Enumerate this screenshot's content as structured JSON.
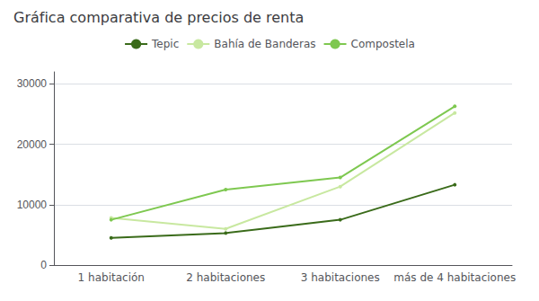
{
  "chart_data": {
    "type": "line",
    "title": "Gráfica comparativa de precios de renta",
    "categories": [
      "1 habitación",
      "2 habitaciones",
      "3 habitaciones",
      "más de 4 habitaciones"
    ],
    "series": [
      {
        "name": "Tepic",
        "color": "#3a6b1a",
        "values": [
          4500,
          5300,
          7500,
          13300
        ]
      },
      {
        "name": "Bahía de Banderas",
        "color": "#c8e8a0",
        "values": [
          7800,
          6000,
          13000,
          25200
        ]
      },
      {
        "name": "Compostela",
        "color": "#7ec850",
        "values": [
          7500,
          12500,
          14500,
          26300
        ]
      }
    ],
    "ylim": [
      0,
      32000
    ],
    "yticks": [
      0,
      10000,
      20000,
      30000
    ],
    "grid": true,
    "legend": "top"
  }
}
